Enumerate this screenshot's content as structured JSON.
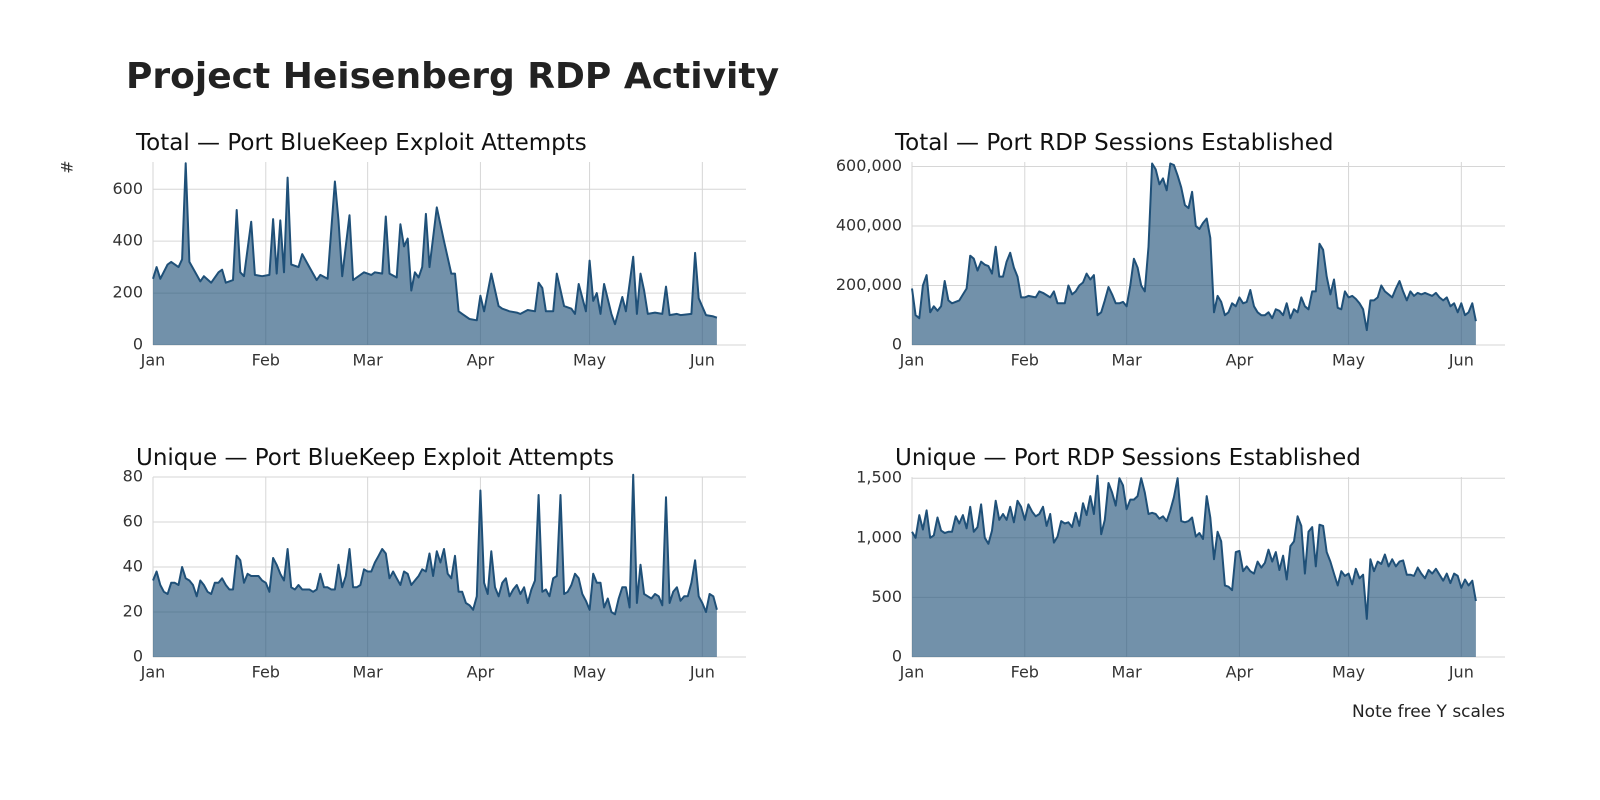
{
  "title": "Project Heisenberg RDP Activity",
  "caption": "Note free Y scales",
  "chart_data": [
    {
      "type": "area",
      "title": "Total — Port BlueKeep Exploit Attempts",
      "y_label": "#",
      "color": "#1f5078",
      "grid": true,
      "xlim": [
        0,
        163
      ],
      "xticks": [
        {
          "value": 0,
          "label": "Jan"
        },
        {
          "value": 31,
          "label": "Feb"
        },
        {
          "value": 59,
          "label": "Mar"
        },
        {
          "value": 90,
          "label": "Apr"
        },
        {
          "value": 120,
          "label": "May"
        },
        {
          "value": 151,
          "label": "Jun"
        }
      ],
      "ylim": [
        0,
        705
      ],
      "yticks": [
        0,
        200,
        400,
        600
      ],
      "x": [
        0,
        1,
        2,
        4,
        5,
        7,
        8,
        9,
        10,
        12,
        13,
        14,
        16,
        18,
        19,
        20,
        22,
        23,
        24,
        25,
        27,
        28,
        30,
        32,
        33,
        34,
        35,
        36,
        37,
        38,
        40,
        41,
        43,
        45,
        46,
        48,
        50,
        51,
        52,
        54,
        55,
        56,
        58,
        60,
        61,
        63,
        64,
        65,
        67,
        68,
        69,
        70,
        71,
        72,
        73,
        74,
        75,
        76,
        78,
        80,
        82,
        83,
        84,
        85,
        87,
        89,
        90,
        91,
        93,
        95,
        96,
        98,
        100,
        101,
        103,
        105,
        106,
        107,
        108,
        110,
        111,
        113,
        115,
        116,
        117,
        119,
        120,
        121,
        122,
        123,
        124,
        126,
        127,
        129,
        130,
        132,
        133,
        134,
        135,
        136,
        138,
        140,
        141,
        142,
        144,
        145,
        148,
        149,
        150,
        152,
        154,
        155
      ],
      "values": [
        255,
        300,
        255,
        310,
        320,
        300,
        330,
        700,
        320,
        270,
        245,
        265,
        240,
        280,
        290,
        240,
        250,
        520,
        280,
        265,
        475,
        270,
        265,
        270,
        485,
        275,
        480,
        280,
        645,
        310,
        300,
        350,
        300,
        250,
        270,
        255,
        630,
        480,
        265,
        500,
        250,
        260,
        280,
        270,
        280,
        275,
        495,
        275,
        260,
        465,
        380,
        410,
        210,
        280,
        260,
        300,
        505,
        300,
        530,
        400,
        275,
        275,
        130,
        120,
        100,
        95,
        190,
        130,
        275,
        150,
        140,
        130,
        125,
        120,
        135,
        130,
        240,
        220,
        130,
        130,
        275,
        150,
        140,
        120,
        235,
        130,
        325,
        170,
        200,
        120,
        235,
        120,
        80,
        185,
        130,
        340,
        120,
        275,
        210,
        120,
        125,
        120,
        225,
        115,
        120,
        115,
        120,
        355,
        180,
        115,
        110,
        105
      ]
    },
    {
      "type": "area",
      "title": "Total — Port RDP Sessions Established",
      "color": "#1f5078",
      "grid": true,
      "xlim": [
        0,
        163
      ],
      "xticks": [
        {
          "value": 0,
          "label": "Jan"
        },
        {
          "value": 31,
          "label": "Feb"
        },
        {
          "value": 59,
          "label": "Mar"
        },
        {
          "value": 90,
          "label": "Apr"
        },
        {
          "value": 120,
          "label": "May"
        },
        {
          "value": 151,
          "label": "Jun"
        }
      ],
      "ylim": [
        0,
        615000
      ],
      "yticks": [
        0,
        {
          "value": 200000,
          "label": "200,000"
        },
        {
          "value": 400000,
          "label": "400,000"
        },
        {
          "value": 600000,
          "label": "600,000"
        }
      ],
      "x": [
        0,
        1,
        2,
        3,
        4,
        5,
        6,
        7,
        8,
        9,
        10,
        11,
        13,
        15,
        16,
        17,
        18,
        19,
        20,
        21,
        22,
        23,
        24,
        25,
        26,
        27,
        28,
        29,
        30,
        31,
        32,
        34,
        35,
        36,
        38,
        39,
        40,
        41,
        42,
        43,
        44,
        45,
        46,
        47,
        48,
        49,
        50,
        51,
        52,
        53,
        54,
        55,
        56,
        57,
        58,
        59,
        60,
        61,
        62,
        63,
        64,
        65,
        66,
        67,
        68,
        69,
        70,
        71,
        72,
        73,
        74,
        75,
        76,
        77,
        78,
        79,
        80,
        81,
        82,
        83,
        84,
        85,
        86,
        87,
        88,
        89,
        90,
        91,
        92,
        93,
        94,
        95,
        96,
        97,
        98,
        99,
        100,
        101,
        102,
        103,
        104,
        105,
        106,
        107,
        108,
        109,
        110,
        111,
        112,
        113,
        114,
        115,
        116,
        117,
        118,
        119,
        120,
        121,
        122,
        123,
        124,
        125,
        126,
        127,
        128,
        129,
        130,
        131,
        132,
        133,
        134,
        135,
        136,
        137,
        138,
        139,
        140,
        141,
        142,
        143,
        144,
        145,
        146,
        147,
        148,
        149,
        150,
        151,
        152,
        153,
        154,
        155
      ],
      "values": [
        190000,
        100000,
        90000,
        200000,
        235000,
        110000,
        130000,
        115000,
        130000,
        215000,
        150000,
        140000,
        150000,
        190000,
        300000,
        290000,
        250000,
        280000,
        270000,
        265000,
        240000,
        330000,
        230000,
        230000,
        280000,
        310000,
        260000,
        230000,
        160000,
        160000,
        165000,
        160000,
        180000,
        175000,
        160000,
        180000,
        140000,
        140000,
        140000,
        200000,
        170000,
        180000,
        200000,
        210000,
        240000,
        220000,
        235000,
        100000,
        110000,
        150000,
        195000,
        170000,
        140000,
        140000,
        145000,
        130000,
        200000,
        290000,
        260000,
        200000,
        180000,
        330000,
        610000,
        590000,
        540000,
        560000,
        520000,
        610000,
        605000,
        570000,
        530000,
        470000,
        460000,
        515000,
        400000,
        390000,
        410000,
        425000,
        360000,
        110000,
        165000,
        145000,
        100000,
        110000,
        140000,
        130000,
        160000,
        140000,
        145000,
        185000,
        130000,
        110000,
        100000,
        100000,
        110000,
        90000,
        120000,
        115000,
        100000,
        140000,
        90000,
        120000,
        110000,
        160000,
        130000,
        120000,
        180000,
        180000,
        340000,
        320000,
        230000,
        170000,
        220000,
        125000,
        120000,
        180000,
        160000,
        165000,
        155000,
        140000,
        120000,
        50000,
        150000,
        150000,
        160000,
        200000,
        180000,
        170000,
        160000,
        190000,
        215000,
        180000,
        150000,
        180000,
        165000,
        175000,
        170000,
        175000,
        170000,
        165000,
        175000,
        160000,
        150000,
        160000,
        130000,
        140000,
        110000,
        140000,
        100000,
        110000,
        140000,
        80000
      ]
    },
    {
      "type": "area",
      "title": "Unique — Port BlueKeep Exploit Attempts",
      "color": "#1f5078",
      "grid": true,
      "xlim": [
        0,
        163
      ],
      "xticks": [
        {
          "value": 0,
          "label": "Jan"
        },
        {
          "value": 31,
          "label": "Feb"
        },
        {
          "value": 59,
          "label": "Mar"
        },
        {
          "value": 90,
          "label": "Apr"
        },
        {
          "value": 120,
          "label": "May"
        },
        {
          "value": 151,
          "label": "Jun"
        }
      ],
      "ylim": [
        0,
        80
      ],
      "yticks": [
        0,
        20,
        40,
        60,
        80
      ],
      "x": [
        0,
        1,
        2,
        3,
        4,
        5,
        6,
        7,
        8,
        9,
        10,
        11,
        12,
        13,
        14,
        15,
        16,
        17,
        18,
        19,
        20,
        21,
        22,
        23,
        24,
        25,
        26,
        27,
        28,
        29,
        30,
        31,
        32,
        33,
        34,
        35,
        36,
        37,
        38,
        39,
        40,
        41,
        42,
        43,
        44,
        45,
        46,
        47,
        48,
        49,
        50,
        51,
        52,
        53,
        54,
        55,
        56,
        57,
        58,
        59,
        60,
        61,
        62,
        63,
        64,
        65,
        66,
        67,
        68,
        69,
        70,
        71,
        72,
        73,
        74,
        75,
        76,
        77,
        78,
        79,
        80,
        81,
        82,
        83,
        84,
        85,
        86,
        87,
        88,
        89,
        90,
        91,
        92,
        93,
        94,
        95,
        96,
        97,
        98,
        99,
        100,
        101,
        102,
        103,
        104,
        105,
        106,
        107,
        108,
        109,
        110,
        111,
        112,
        113,
        114,
        115,
        116,
        117,
        118,
        119,
        120,
        121,
        122,
        123,
        124,
        125,
        126,
        127,
        128,
        129,
        130,
        131,
        132,
        133,
        134,
        135,
        136,
        137,
        138,
        139,
        140,
        141,
        142,
        143,
        144,
        145,
        146,
        147,
        148,
        149,
        150,
        151,
        152,
        153,
        154,
        155
      ],
      "values": [
        34,
        38,
        32,
        29,
        28,
        33,
        33,
        32,
        40,
        35,
        34,
        32,
        27,
        34,
        32,
        29,
        28,
        33,
        33,
        35,
        32,
        30,
        30,
        45,
        43,
        33,
        37,
        36,
        36,
        36,
        34,
        33,
        29,
        44,
        41,
        37,
        34,
        48,
        31,
        30,
        32,
        30,
        30,
        30,
        29,
        30,
        37,
        31,
        31,
        30,
        30,
        41,
        31,
        36,
        48,
        31,
        31,
        32,
        39,
        38,
        38,
        42,
        45,
        48,
        46,
        35,
        38,
        35,
        32,
        38,
        37,
        32,
        34,
        36,
        39,
        38,
        46,
        36,
        47,
        42,
        48,
        37,
        35,
        45,
        29,
        29,
        24,
        23,
        21,
        27,
        74,
        33,
        28,
        47,
        31,
        27,
        33,
        35,
        27,
        30,
        32,
        28,
        31,
        24,
        30,
        34,
        72,
        29,
        30,
        27,
        35,
        36,
        72,
        28,
        29,
        32,
        37,
        35,
        28,
        25,
        21,
        37,
        33,
        33,
        22,
        26,
        20,
        19,
        26,
        31,
        31,
        22,
        81,
        24,
        41,
        28,
        27,
        26,
        28,
        27,
        23,
        71,
        24,
        29,
        31,
        25,
        27,
        27,
        33,
        43,
        27,
        24,
        20,
        28,
        27,
        21
      ]
    },
    {
      "type": "area",
      "title": "Unique — Port RDP Sessions Established",
      "color": "#1f5078",
      "grid": true,
      "xlim": [
        0,
        163
      ],
      "xticks": [
        {
          "value": 0,
          "label": "Jan"
        },
        {
          "value": 31,
          "label": "Feb"
        },
        {
          "value": 59,
          "label": "Mar"
        },
        {
          "value": 90,
          "label": "Apr"
        },
        {
          "value": 120,
          "label": "May"
        },
        {
          "value": 151,
          "label": "Jun"
        }
      ],
      "ylim": [
        0,
        1510
      ],
      "yticks": [
        0,
        500,
        {
          "value": 1000,
          "label": "1,000"
        },
        {
          "value": 1500,
          "label": "1,500"
        }
      ],
      "x": [
        0,
        1,
        2,
        3,
        4,
        5,
        6,
        7,
        8,
        9,
        10,
        11,
        12,
        13,
        14,
        15,
        16,
        17,
        18,
        19,
        20,
        21,
        22,
        23,
        24,
        25,
        26,
        27,
        28,
        29,
        30,
        31,
        32,
        33,
        34,
        35,
        36,
        37,
        38,
        39,
        40,
        41,
        42,
        43,
        44,
        45,
        46,
        47,
        48,
        49,
        50,
        51,
        52,
        53,
        54,
        55,
        56,
        57,
        58,
        59,
        60,
        61,
        62,
        63,
        64,
        65,
        66,
        67,
        68,
        69,
        70,
        71,
        72,
        73,
        74,
        75,
        76,
        77,
        78,
        79,
        80,
        81,
        82,
        83,
        84,
        85,
        86,
        87,
        88,
        89,
        90,
        91,
        92,
        93,
        94,
        95,
        96,
        97,
        98,
        99,
        100,
        101,
        102,
        103,
        104,
        105,
        106,
        107,
        108,
        109,
        110,
        111,
        112,
        113,
        114,
        115,
        116,
        117,
        118,
        119,
        120,
        121,
        122,
        123,
        124,
        125,
        126,
        127,
        128,
        129,
        130,
        131,
        132,
        133,
        134,
        135,
        136,
        137,
        138,
        139,
        140,
        141,
        142,
        143,
        144,
        145,
        146,
        147,
        148,
        149,
        150,
        151,
        152,
        153,
        154,
        155
      ],
      "values": [
        1050,
        1000,
        1190,
        1070,
        1230,
        1000,
        1020,
        1170,
        1060,
        1040,
        1050,
        1050,
        1180,
        1120,
        1190,
        1080,
        1260,
        1050,
        1090,
        1280,
        1000,
        950,
        1060,
        1310,
        1150,
        1200,
        1150,
        1260,
        1130,
        1310,
        1260,
        1150,
        1280,
        1220,
        1180,
        1200,
        1260,
        1100,
        1200,
        960,
        1010,
        1140,
        1120,
        1130,
        1090,
        1210,
        1100,
        1290,
        1190,
        1350,
        1200,
        1520,
        1030,
        1150,
        1460,
        1380,
        1270,
        1500,
        1440,
        1240,
        1320,
        1320,
        1350,
        1500,
        1380,
        1200,
        1210,
        1200,
        1160,
        1180,
        1140,
        1230,
        1340,
        1500,
        1140,
        1130,
        1140,
        1170,
        1010,
        1040,
        990,
        1350,
        1170,
        820,
        1050,
        970,
        600,
        590,
        560,
        880,
        890,
        720,
        760,
        720,
        700,
        800,
        750,
        790,
        900,
        800,
        880,
        730,
        850,
        650,
        930,
        970,
        1180,
        1100,
        700,
        1050,
        1090,
        760,
        1110,
        1100,
        880,
        800,
        700,
        600,
        720,
        680,
        700,
        610,
        740,
        660,
        690,
        320,
        820,
        720,
        800,
        780,
        860,
        760,
        820,
        760,
        800,
        810,
        690,
        690,
        680,
        750,
        700,
        660,
        730,
        700,
        740,
        690,
        640,
        700,
        620,
        700,
        680,
        580,
        650,
        600,
        640,
        470
      ]
    }
  ]
}
